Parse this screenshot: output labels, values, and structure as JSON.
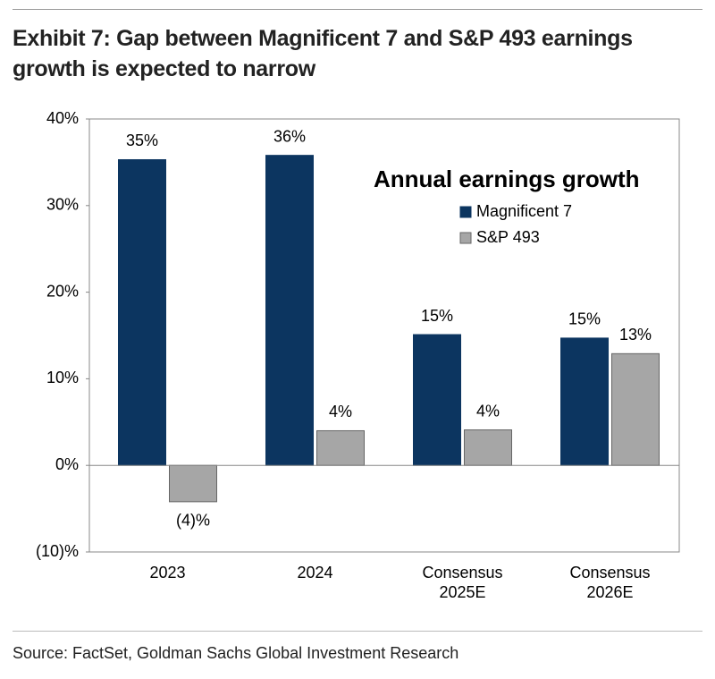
{
  "chart_data": {
    "type": "bar",
    "title": "Exhibit 7: Gap between Magnificent 7 and S&P 493 earnings growth is expected to narrow",
    "legend_title": "Annual earnings growth",
    "source": "Source: FactSet, Goldman Sachs Global Investment Research",
    "categories": [
      "2023",
      "2024",
      "Consensus 2025E",
      "Consensus 2026E"
    ],
    "series": [
      {
        "name": "Magnificent 7",
        "color": "#0c3560",
        "values": [
          35.3,
          35.8,
          15.1,
          14.7
        ],
        "value_labels": [
          "35%",
          "36%",
          "15%",
          "15%"
        ]
      },
      {
        "name": "S&P 493",
        "color": "#a6a6a6",
        "values": [
          -4.2,
          4.0,
          4.1,
          12.9
        ],
        "value_labels": [
          "(4)%",
          "4%",
          "4%",
          "13%"
        ]
      }
    ],
    "ylim": [
      -10,
      40
    ],
    "yticks": [
      {
        "value": -10,
        "label": "(10)%"
      },
      {
        "value": 0,
        "label": "0%"
      },
      {
        "value": 10,
        "label": "10%"
      },
      {
        "value": 20,
        "label": "20%"
      },
      {
        "value": 30,
        "label": "30%"
      },
      {
        "value": 40,
        "label": "40%"
      }
    ],
    "grid": false,
    "legend": "upper right"
  }
}
